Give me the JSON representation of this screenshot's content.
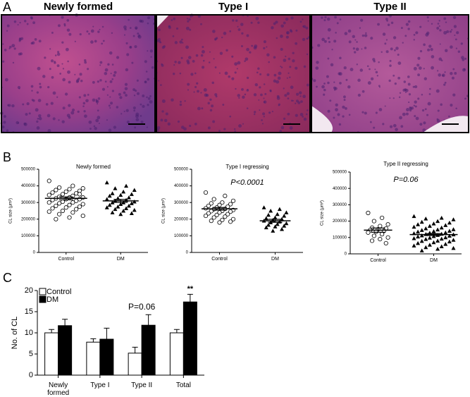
{
  "panels": [
    "A",
    "B",
    "C"
  ],
  "images": [
    {
      "title": "Newly formed"
    },
    {
      "title": "Type I"
    },
    {
      "title": "Type II"
    }
  ],
  "chart_data": [
    {
      "type": "strip",
      "title": "Newly formed",
      "y_label": "CL size (μm²)",
      "categories": [
        "Control",
        "DM"
      ],
      "ylim": [
        0,
        500000
      ],
      "yticks": [
        0,
        100000,
        200000,
        300000,
        400000,
        500000
      ],
      "groups": [
        {
          "marker": "circle",
          "mean": 325000,
          "sem": 9000,
          "values": [
            430000,
            400000,
            390000,
            385000,
            380000,
            375000,
            370000,
            365000,
            360000,
            355000,
            350000,
            345000,
            340000,
            335000,
            330000,
            330000,
            325000,
            320000,
            320000,
            315000,
            310000,
            305000,
            300000,
            300000,
            295000,
            290000,
            285000,
            280000,
            275000,
            270000,
            265000,
            260000,
            250000,
            245000,
            240000,
            230000,
            220000,
            210000,
            200000,
            350000
          ]
        },
        {
          "marker": "triangle",
          "mean": 310000,
          "sem": 9000,
          "values": [
            420000,
            400000,
            385000,
            375000,
            365000,
            355000,
            350000,
            345000,
            340000,
            330000,
            325000,
            320000,
            315000,
            310000,
            305000,
            300000,
            300000,
            295000,
            290000,
            285000,
            280000,
            275000,
            270000,
            265000,
            260000,
            255000,
            250000,
            240000,
            235000,
            230000
          ]
        }
      ]
    },
    {
      "type": "strip",
      "title": "Type I regressing",
      "y_label": "CL size (μm²)",
      "annotation": "P<0.0001",
      "categories": [
        "Control",
        "DM"
      ],
      "ylim": [
        0,
        500000
      ],
      "yticks": [
        0,
        100000,
        200000,
        300000,
        400000,
        500000
      ],
      "groups": [
        {
          "marker": "circle",
          "mean": 262000,
          "sem": 8000,
          "values": [
            360000,
            340000,
            320000,
            310000,
            300000,
            295000,
            290000,
            285000,
            280000,
            275000,
            270000,
            265000,
            262000,
            260000,
            255000,
            250000,
            248000,
            245000,
            240000,
            235000,
            230000,
            225000,
            220000,
            215000,
            210000,
            200000,
            195000,
            190000,
            185000,
            180000
          ]
        },
        {
          "marker": "triangle",
          "mean": 190000,
          "sem": 9000,
          "values": [
            270000,
            260000,
            250000,
            240000,
            230000,
            225000,
            220000,
            210000,
            205000,
            200000,
            195000,
            190000,
            185000,
            180000,
            175000,
            170000,
            165000,
            160000,
            155000,
            150000,
            140000,
            130000
          ]
        }
      ]
    },
    {
      "type": "strip",
      "title": "Type II regressing",
      "y_label": "CL size (μm²)",
      "annotation": "P=0.06",
      "categories": [
        "Control",
        "DM"
      ],
      "ylim": [
        0,
        500000
      ],
      "yticks": [
        0,
        100000,
        200000,
        300000,
        400000,
        500000
      ],
      "groups": [
        {
          "marker": "circle",
          "mean": 145000,
          "sem": 13000,
          "values": [
            250000,
            220000,
            200000,
            180000,
            170000,
            160000,
            155000,
            150000,
            145000,
            140000,
            135000,
            130000,
            120000,
            110000,
            100000,
            90000,
            80000,
            65000
          ]
        },
        {
          "marker": "triangle",
          "mean": 118000,
          "sem": 6000,
          "values": [
            230000,
            220000,
            215000,
            210000,
            200000,
            195000,
            190000,
            185000,
            180000,
            175000,
            170000,
            165000,
            160000,
            155000,
            150000,
            148000,
            145000,
            140000,
            138000,
            135000,
            130000,
            128000,
            125000,
            122000,
            120000,
            118000,
            115000,
            112000,
            110000,
            108000,
            105000,
            100000,
            98000,
            95000,
            92000,
            90000,
            85000,
            80000,
            78000,
            75000,
            70000,
            65000,
            60000,
            55000,
            50000,
            45000,
            40000,
            35000,
            30000,
            20000
          ]
        }
      ]
    },
    {
      "type": "bar",
      "y_label": "No. of CL",
      "categories": [
        "Newly formed",
        "Type I",
        "Type II",
        "Total"
      ],
      "ylim": [
        0,
        20
      ],
      "yticks": [
        0,
        5,
        10,
        15,
        20
      ],
      "series": [
        {
          "name": "Control",
          "color": "#ffffff",
          "values": [
            10,
            7.8,
            5.2,
            10
          ],
          "errors": [
            0.8,
            0.8,
            1.4,
            0.8
          ]
        },
        {
          "name": "DM",
          "color": "#000000",
          "values": [
            11.7,
            8.5,
            11.8,
            17.3
          ],
          "errors": [
            1.5,
            2.6,
            2.5,
            1.8
          ]
        }
      ],
      "annotations": [
        "P=0.06",
        "**"
      ]
    }
  ]
}
